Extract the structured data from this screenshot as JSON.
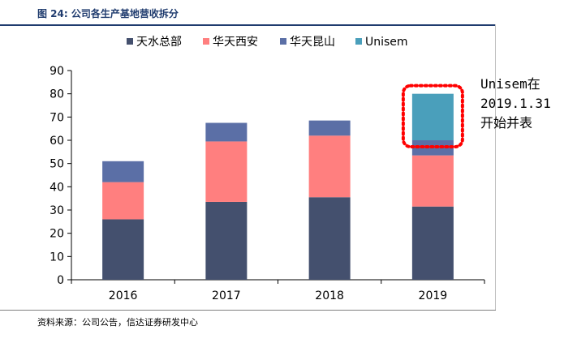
{
  "header": {
    "title": "图 24: 公司各生产基地营收拆分"
  },
  "source": "资料来源：公司公告，信达证券研发中心",
  "annotation": "Unisem在\n2019.1.31\n开始并表",
  "colors": {
    "header_rule": "#1f3b6e",
    "highlight_box": "#ff0000"
  },
  "chart_data": {
    "type": "bar",
    "stacked": true,
    "categories": [
      "2016",
      "2017",
      "2018",
      "2019"
    ],
    "series": [
      {
        "name": "天水总部",
        "color": "#44506e",
        "values": [
          26,
          33.5,
          35.5,
          31.5
        ]
      },
      {
        "name": "华天西安",
        "color": "#ff7f7f",
        "values": [
          16,
          26,
          26.5,
          22
        ]
      },
      {
        "name": "华天昆山",
        "color": "#5b6fa6",
        "values": [
          9,
          8,
          6.5,
          6.5
        ]
      },
      {
        "name": "Unisem",
        "color": "#4a9fbb",
        "values": [
          0,
          0,
          0,
          20
        ]
      }
    ],
    "yticks": [
      "0",
      "10",
      "20",
      "30",
      "40",
      "50",
      "60",
      "70",
      "80",
      "90"
    ],
    "ylim": [
      0,
      90
    ],
    "grid": false,
    "legend_position": "top",
    "highlight_category": "2019"
  }
}
